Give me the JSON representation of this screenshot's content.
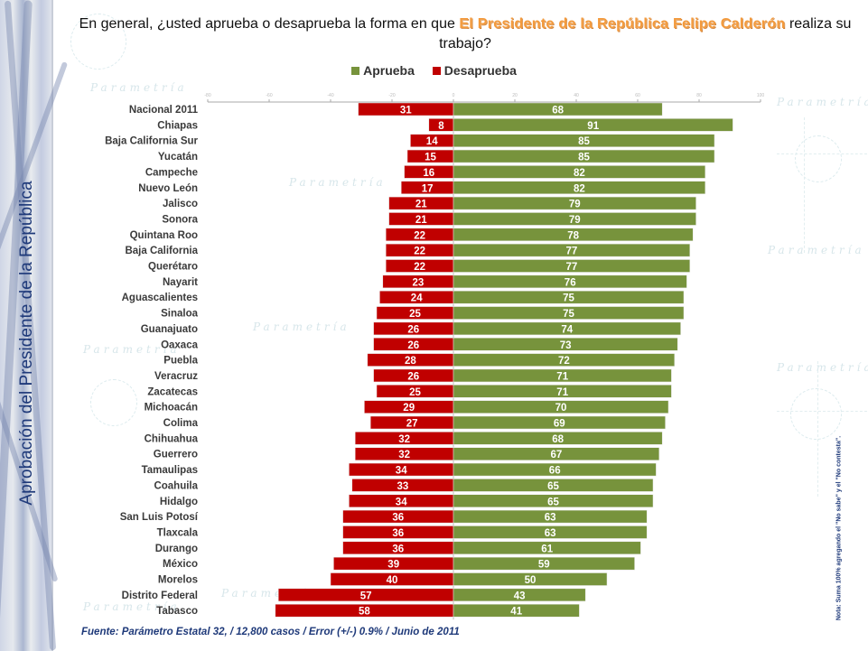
{
  "side_title": "Aprobación del Presidente de la República",
  "question": {
    "prefix": "En general, ¿usted aprueba o desaprueba la forma en que",
    "highlight": "El Presidente de la República Felipe Calderón",
    "suffix": "realiza su trabajo?"
  },
  "watermark_text": "Parametría",
  "source": "Fuente: Parámetro Estatal 32, / 12,800 casos / Error (+/-) 0.9% / Junio de 2011",
  "note": "Nota: Suma 100% agregando el \"No sabe\" y el \"No contesta\".",
  "colors": {
    "aprueba": "#77933C",
    "desaprueba": "#C00000"
  },
  "chart_data": {
    "type": "bar",
    "orientation": "horizontal-diverging",
    "title": "En general, ¿usted aprueba o desaprueba la forma en que El Presidente de la República Felipe Calderón realiza su trabajo?",
    "xlabel": "",
    "ylabel": "",
    "xlim": [
      -80,
      100
    ],
    "xticks": [
      -80,
      -60,
      -40,
      -20,
      0,
      20,
      40,
      60,
      80,
      100
    ],
    "legend": {
      "position": "top-center",
      "entries": [
        "Aprueba",
        "Desaprueba"
      ]
    },
    "grid": false,
    "categories": [
      "Nacional 2011",
      "Chiapas",
      "Baja California Sur",
      "Yucatán",
      "Campeche",
      "Nuevo León",
      "Jalisco",
      "Sonora",
      "Quintana Roo",
      "Baja California",
      "Querétaro",
      "Nayarit",
      "Aguascalientes",
      "Sinaloa",
      "Guanajuato",
      "Oaxaca",
      "Puebla",
      "Veracruz",
      "Zacatecas",
      "Michoacán",
      "Colima",
      "Chihuahua",
      "Guerrero",
      "Tamaulipas",
      "Coahuila",
      "Hidalgo",
      "San Luis Potosí",
      "Tlaxcala",
      "Durango",
      "México",
      "Morelos",
      "Distrito Federal",
      "Tabasco"
    ],
    "series": [
      {
        "name": "Aprueba",
        "values": [
          68,
          91,
          85,
          85,
          82,
          82,
          79,
          79,
          78,
          77,
          77,
          76,
          75,
          75,
          74,
          73,
          72,
          71,
          71,
          70,
          69,
          68,
          67,
          66,
          65,
          65,
          63,
          63,
          61,
          59,
          50,
          43,
          41
        ]
      },
      {
        "name": "Desaprueba",
        "values": [
          31,
          8,
          14,
          15,
          16,
          17,
          21,
          21,
          22,
          22,
          22,
          23,
          24,
          25,
          26,
          26,
          28,
          26,
          25,
          29,
          27,
          32,
          32,
          34,
          33,
          34,
          36,
          36,
          36,
          39,
          40,
          57,
          58
        ]
      }
    ]
  }
}
